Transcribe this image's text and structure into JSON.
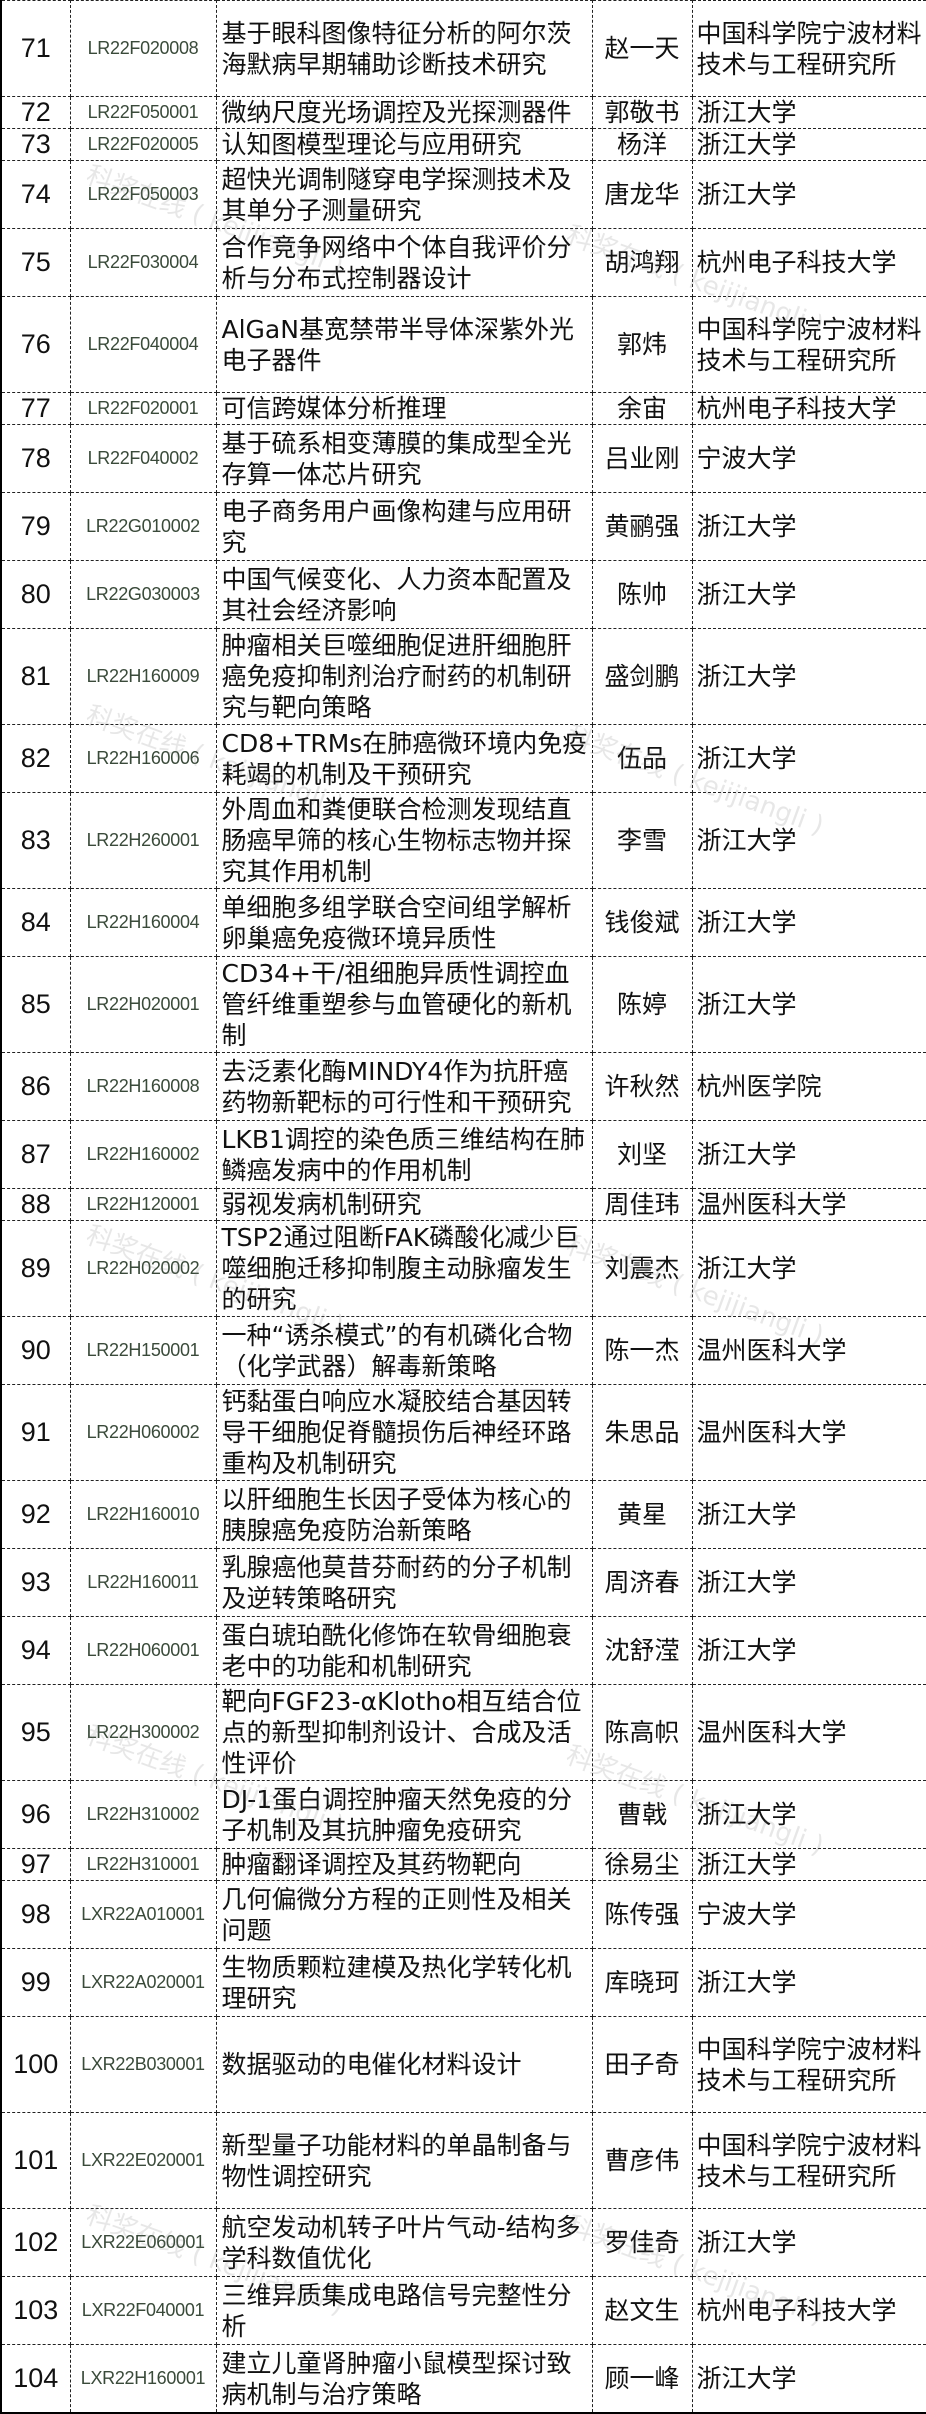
{
  "watermark": "科奖在线 ( kejijiangli )",
  "rows": [
    {
      "no": "71",
      "code": "LR22F020008",
      "title": "基于眼科图像特征分析的阿尔茨海默病早期辅助诊断技术研究",
      "name": "赵一天",
      "inst": "中国科学院宁波材料技术与工程研究所",
      "lines": 3
    },
    {
      "no": "72",
      "code": "LR22F050001",
      "title": "微纳尺度光场调控及光探测器件",
      "name": "郭敬书",
      "inst": "浙江大学",
      "lines": 1
    },
    {
      "no": "73",
      "code": "LR22F020005",
      "title": "认知图模型理论与应用研究",
      "name": "杨洋",
      "inst": "浙江大学",
      "lines": 1
    },
    {
      "no": "74",
      "code": "LR22F050003",
      "title": "超快光调制隧穿电学探测技术及其单分子测量研究",
      "name": "唐龙华",
      "inst": "浙江大学",
      "lines": 2
    },
    {
      "no": "75",
      "code": "LR22F030004",
      "title": "合作竞争网络中个体自我评价分析与分布式控制器设计",
      "name": "胡鸿翔",
      "inst": "杭州电子科技大学",
      "lines": 2
    },
    {
      "no": "76",
      "code": "LR22F040004",
      "title": "AlGaN基宽禁带半导体深紫外光电子器件",
      "name": "郭炜",
      "inst": "中国科学院宁波材料技术与工程研究所",
      "lines": 3
    },
    {
      "no": "77",
      "code": "LR22F020001",
      "title": "可信跨媒体分析推理",
      "name": "余宙",
      "inst": "杭州电子科技大学",
      "lines": 1
    },
    {
      "no": "78",
      "code": "LR22F040002",
      "title": "基于硫系相变薄膜的集成型全光存算一体芯片研究",
      "name": "吕业刚",
      "inst": "宁波大学",
      "lines": 2
    },
    {
      "no": "79",
      "code": "LR22G010002",
      "title": "电子商务用户画像构建与应用研究",
      "name": "黄鹂强",
      "inst": "浙江大学",
      "lines": 2
    },
    {
      "no": "80",
      "code": "LR22G030003",
      "title": "中国气候变化、人力资本配置及其社会经济影响",
      "name": "陈帅",
      "inst": "浙江大学",
      "lines": 2
    },
    {
      "no": "81",
      "code": "LR22H160009",
      "title": "肿瘤相关巨噬细胞促进肝细胞肝癌免疫抑制剂治疗耐药的机制研究与靶向策略",
      "name": "盛剑鹏",
      "inst": "浙江大学",
      "lines": 3
    },
    {
      "no": "82",
      "code": "LR22H160006",
      "title": "CD8+TRMs在肺癌微环境内免疫耗竭的机制及干预研究",
      "name": "伍品",
      "inst": "浙江大学",
      "lines": 2
    },
    {
      "no": "83",
      "code": "LR22H260001",
      "title": "外周血和粪便联合检测发现结直肠癌早筛的核心生物标志物并探究其作用机制",
      "name": "李雪",
      "inst": "浙江大学",
      "lines": 3
    },
    {
      "no": "84",
      "code": "LR22H160004",
      "title": "单细胞多组学联合空间组学解析卵巢癌免疫微环境异质性",
      "name": "钱俊斌",
      "inst": "浙江大学",
      "lines": 2
    },
    {
      "no": "85",
      "code": "LR22H020001",
      "title": "CD34+干/祖细胞异质性调控血管纤维重塑参与血管硬化的新机制",
      "name": "陈婷",
      "inst": "浙江大学",
      "lines": 3
    },
    {
      "no": "86",
      "code": "LR22H160008",
      "title": "去泛素化酶MINDY4作为抗肝癌药物新靶标的可行性和干预研究",
      "name": "许秋然",
      "inst": "杭州医学院",
      "lines": 2
    },
    {
      "no": "87",
      "code": "LR22H160002",
      "title": "LKB1调控的染色质三维结构在肺鳞癌发病中的作用机制",
      "name": "刘坚",
      "inst": "浙江大学",
      "lines": 2
    },
    {
      "no": "88",
      "code": "LR22H120001",
      "title": "弱视发病机制研究",
      "name": "周佳玮",
      "inst": "温州医科大学",
      "lines": 1
    },
    {
      "no": "89",
      "code": "LR22H020002",
      "title": "TSP2通过阻断FAK磷酸化减少巨噬细胞迁移抑制腹主动脉瘤发生的研究",
      "name": "刘震杰",
      "inst": "浙江大学",
      "lines": 3
    },
    {
      "no": "90",
      "code": "LR22H150001",
      "title": "一种“诱杀模式”的有机磷化合物（化学武器）解毒新策略",
      "name": "陈一杰",
      "inst": "温州医科大学",
      "lines": 2
    },
    {
      "no": "91",
      "code": "LR22H060002",
      "title": "钙黏蛋白响应水凝胶结合基因转导干细胞促脊髓损伤后神经环路重构及机制研究",
      "name": "朱思品",
      "inst": "温州医科大学",
      "lines": 3
    },
    {
      "no": "92",
      "code": "LR22H160010",
      "title": "以肝细胞生长因子受体为核心的胰腺癌免疫防治新策略",
      "name": "黄星",
      "inst": "浙江大学",
      "lines": 2
    },
    {
      "no": "93",
      "code": "LR22H160011",
      "title": "乳腺癌他莫昔芬耐药的分子机制及逆转策略研究",
      "name": "周济春",
      "inst": "浙江大学",
      "lines": 2
    },
    {
      "no": "94",
      "code": "LR22H060001",
      "title": "蛋白琥珀酰化修饰在软骨细胞衰老中的功能和机制研究",
      "name": "沈舒滢",
      "inst": "浙江大学",
      "lines": 2
    },
    {
      "no": "95",
      "code": "LR22H300002",
      "title": "靶向FGF23-αKlotho相互结合位点的新型抑制剂设计、合成及活性评价",
      "name": "陈高帜",
      "inst": "温州医科大学",
      "lines": 3
    },
    {
      "no": "96",
      "code": "LR22H310002",
      "title": "DJ-1蛋白调控肿瘤天然免疫的分子机制及其抗肿瘤免疫研究",
      "name": "曹戟",
      "inst": "浙江大学",
      "lines": 2
    },
    {
      "no": "97",
      "code": "LR22H310001",
      "title": "肿瘤翻译调控及其药物靶向",
      "name": "徐易尘",
      "inst": "浙江大学",
      "lines": 1
    },
    {
      "no": "98",
      "code": "LXR22A010001",
      "title": "几何偏微分方程的正则性及相关问题",
      "name": "陈传强",
      "inst": "宁波大学",
      "lines": 2
    },
    {
      "no": "99",
      "code": "LXR22A020001",
      "title": "生物质颗粒建模及热化学转化机理研究",
      "name": "库晓珂",
      "inst": "浙江大学",
      "lines": 2
    },
    {
      "no": "100",
      "code": "LXR22B030001",
      "title": "数据驱动的电催化材料设计",
      "name": "田子奇",
      "inst": "中国科学院宁波材料技术与工程研究所",
      "lines": 3
    },
    {
      "no": "101",
      "code": "LXR22E020001",
      "title": "新型量子功能材料的单晶制备与物性调控研究",
      "name": "曹彦伟",
      "inst": "中国科学院宁波材料技术与工程研究所",
      "lines": 3
    },
    {
      "no": "102",
      "code": "LXR22E060001",
      "title": "航空发动机转子叶片气动-结构多学科数值优化",
      "name": "罗佳奇",
      "inst": "浙江大学",
      "lines": 2
    },
    {
      "no": "103",
      "code": "LXR22F040001",
      "title": "三维异质集成电路信号完整性分析",
      "name": "赵文生",
      "inst": "杭州电子科技大学",
      "lines": 2
    },
    {
      "no": "104",
      "code": "LXR22H160001",
      "title": "建立儿童肾肿瘤小鼠模型探讨致病机制与治疗策略",
      "name": "顾一峰",
      "inst": "浙江大学",
      "lines": 2
    }
  ]
}
